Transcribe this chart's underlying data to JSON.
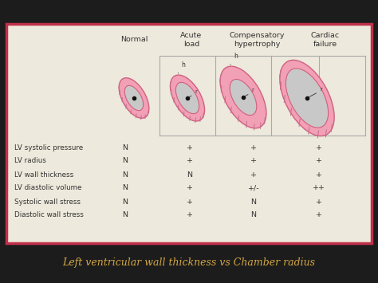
{
  "bg_color": "#1c1c1c",
  "slide_bg": "#ede9dc",
  "border_color": "#c0304a",
  "title": "Left ventricular wall thickness vs Chamber radius",
  "title_color": "#d4a843",
  "headers": [
    "Normal",
    "Acute\nload",
    "Compensatory\nhypertrophy",
    "Cardiac\nfailure"
  ],
  "row_labels": [
    "LV systolic pressure",
    "LV radius",
    "LV wall thickness",
    "LV diastolic volume",
    "Systolic wall stress",
    "Diastolic wall stress"
  ],
  "col_normal": [
    "N",
    "N",
    "N",
    "N",
    "N",
    "N"
  ],
  "col_acute": [
    "+",
    "+",
    "N",
    "+",
    "+",
    "+"
  ],
  "col_comp": [
    "+",
    "+",
    "+",
    "+/-",
    "N",
    "N"
  ],
  "col_cardiac": [
    "+",
    "+",
    "+",
    "++",
    "+",
    "+"
  ],
  "pink_fill": "#f2a0b5",
  "pink_edge": "#d06080",
  "gray_chamber": "#c8c8c8",
  "hatch_color": "#c07090",
  "text_color": "#333333",
  "box_line_color": "#aaaaaa"
}
